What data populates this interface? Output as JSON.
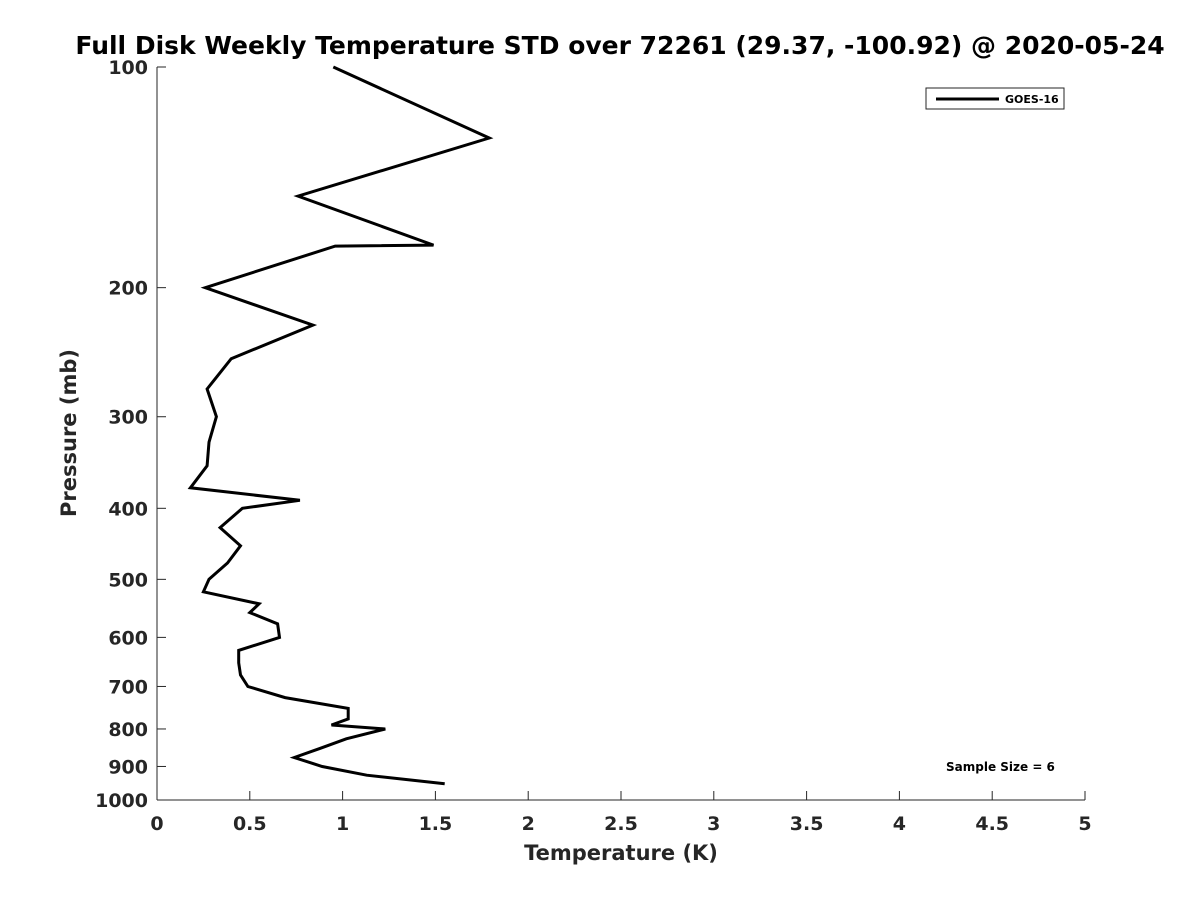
{
  "chart_data": {
    "type": "line",
    "title": "Full Disk Weekly Temperature STD over 72261 (29.37, -100.92) @ 2020-05-24",
    "xlabel": "Temperature (K)",
    "ylabel": "Pressure (mb)",
    "xlim": [
      0,
      5
    ],
    "ylim": [
      100,
      1000
    ],
    "yscale": "log",
    "y_reversed": true,
    "grid": false,
    "x_ticks": [
      0,
      0.5,
      1,
      1.5,
      2,
      2.5,
      3,
      3.5,
      4,
      4.5,
      5
    ],
    "x_tick_labels": [
      "0",
      "0.5",
      "1",
      "1.5",
      "2",
      "2.5",
      "3",
      "3.5",
      "4",
      "4.5",
      "5"
    ],
    "y_ticks": [
      100,
      200,
      300,
      400,
      500,
      600,
      700,
      800,
      900,
      1000
    ],
    "y_tick_labels": [
      "100",
      "200",
      "300",
      "400",
      "500",
      "600",
      "700",
      "800",
      "900",
      "1000"
    ],
    "legend_position": "top-right",
    "series": [
      {
        "name": "GOES-16",
        "color": "#000000",
        "points": [
          {
            "x": 0.95,
            "y": 100
          },
          {
            "x": 1.79,
            "y": 125
          },
          {
            "x": 0.76,
            "y": 150
          },
          {
            "x": 1.49,
            "y": 175
          },
          {
            "x": 0.96,
            "y": 175.5
          },
          {
            "x": 0.26,
            "y": 200
          },
          {
            "x": 0.84,
            "y": 225
          },
          {
            "x": 0.4,
            "y": 250
          },
          {
            "x": 0.27,
            "y": 275
          },
          {
            "x": 0.32,
            "y": 300
          },
          {
            "x": 0.28,
            "y": 325
          },
          {
            "x": 0.27,
            "y": 350
          },
          {
            "x": 0.18,
            "y": 375
          },
          {
            "x": 0.77,
            "y": 390
          },
          {
            "x": 0.46,
            "y": 400
          },
          {
            "x": 0.34,
            "y": 425
          },
          {
            "x": 0.45,
            "y": 450
          },
          {
            "x": 0.38,
            "y": 475
          },
          {
            "x": 0.28,
            "y": 500
          },
          {
            "x": 0.25,
            "y": 520
          },
          {
            "x": 0.55,
            "y": 540
          },
          {
            "x": 0.5,
            "y": 555
          },
          {
            "x": 0.65,
            "y": 575
          },
          {
            "x": 0.66,
            "y": 600
          },
          {
            "x": 0.44,
            "y": 625
          },
          {
            "x": 0.44,
            "y": 650
          },
          {
            "x": 0.45,
            "y": 675
          },
          {
            "x": 0.49,
            "y": 700
          },
          {
            "x": 0.69,
            "y": 725
          },
          {
            "x": 1.03,
            "y": 750
          },
          {
            "x": 1.03,
            "y": 775
          },
          {
            "x": 0.94,
            "y": 790
          },
          {
            "x": 1.23,
            "y": 800
          },
          {
            "x": 1.02,
            "y": 825
          },
          {
            "x": 0.88,
            "y": 850
          },
          {
            "x": 0.74,
            "y": 875
          },
          {
            "x": 0.89,
            "y": 900
          },
          {
            "x": 1.13,
            "y": 925
          },
          {
            "x": 1.55,
            "y": 950
          }
        ]
      }
    ],
    "annotation": "Sample Size = 6"
  }
}
